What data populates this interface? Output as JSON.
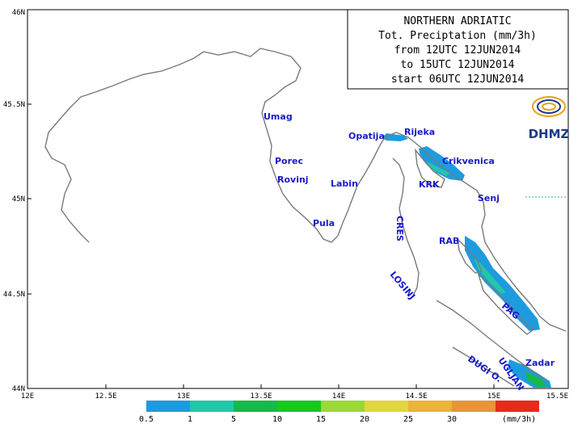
{
  "title": {
    "lines": [
      "NORTHERN ADRIATIC",
      "Tot. Preciptation (mm/3h)",
      "from 12UTC 12JUN2014",
      "to 15UTC 12JUN2014",
      "start 06UTC 12JUN2014"
    ]
  },
  "logo": {
    "text": "DHMZ"
  },
  "axes": {
    "x_ticks": [
      "12E",
      "12.5E",
      "13E",
      "13.5E",
      "14E",
      "14.5E",
      "15E",
      "15.5E"
    ],
    "y_ticks": [
      "44N",
      "44.5N",
      "45N",
      "45.5N",
      "46N"
    ]
  },
  "places": [
    {
      "name": "Umag"
    },
    {
      "name": "Porec"
    },
    {
      "name": "Rovinj"
    },
    {
      "name": "Pula"
    },
    {
      "name": "Labin"
    },
    {
      "name": "Opatija"
    },
    {
      "name": "Rijeka"
    },
    {
      "name": "Crikvenica"
    },
    {
      "name": "KRK"
    },
    {
      "name": "Senj"
    },
    {
      "name": "RAB"
    },
    {
      "name": "PAG"
    },
    {
      "name": "Zadar"
    },
    {
      "name": "UGLJAN"
    },
    {
      "name": "DUGI O."
    },
    {
      "name": "LOSINJ"
    },
    {
      "name": "CRES"
    }
  ],
  "legend": {
    "unit": "(mm/3h)",
    "labels": [
      "0.5",
      "1",
      "5",
      "10",
      "15",
      "20",
      "25",
      "30"
    ],
    "colors": [
      "#1e9bdf",
      "#22c7a8",
      "#18b84a",
      "#18c81c",
      "#9ad83a",
      "#e0d83a",
      "#e8b43a",
      "#e8943a",
      "#e82a1a"
    ]
  }
}
